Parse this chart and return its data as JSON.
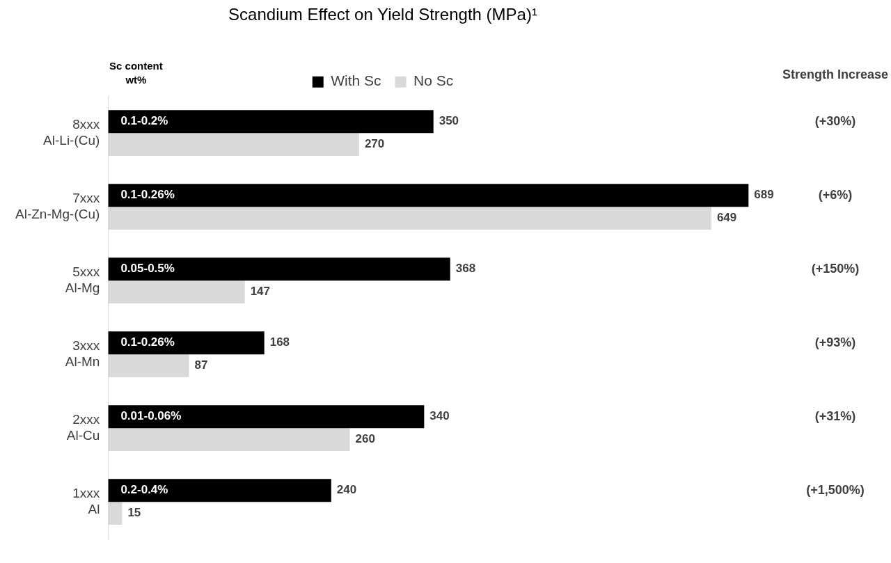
{
  "chart_data": {
    "type": "bar",
    "orientation": "horizontal",
    "title": "Scandium Effect on Yield Strength (MPa)¹",
    "categories": [
      "8xxx\nAl-Li-(Cu)",
      "7xxx\nAl-Zn-Mg-(Cu)",
      "5xxx\nAl-Mg",
      "3xxx\nAl-Mn",
      "2xxx\nAl-Cu",
      "1xxx\nAl"
    ],
    "series": [
      {
        "name": "With Sc",
        "color": "#000000",
        "values": [
          350,
          689,
          368,
          168,
          340,
          240
        ]
      },
      {
        "name": "No Sc",
        "color": "#d9d9d9",
        "values": [
          270,
          649,
          147,
          87,
          260,
          15
        ]
      }
    ],
    "tick_labels": "y",
    "data_labels": true,
    "legend": "top",
    "grid": false,
    "annotations": [
      "Sc content\nwt%",
      "Strength Increase",
      {
        "text": "0.1-0.2%",
        "y": "8xxx\nAl-Li-(Cu)"
      },
      {
        "text": "0.1-0.26%",
        "y": "7xxx\nAl-Zn-Mg-(Cu)"
      },
      {
        "text": "0.05-0.5%",
        "y": "5xxx\nAl-Mg"
      },
      {
        "text": "0.1-0.26%",
        "y": "3xxx\nAl-Mn"
      },
      {
        "text": "0.01-0.06%",
        "y": "2xxx\nAl-Cu"
      },
      {
        "text": "0.2-0.4%",
        "y": "1xxx\nAl"
      },
      "(+30%)",
      "(+6%)",
      "(+150%)",
      "(+93%)",
      "(+31%)",
      "(+1,500%)"
    ]
  }
}
